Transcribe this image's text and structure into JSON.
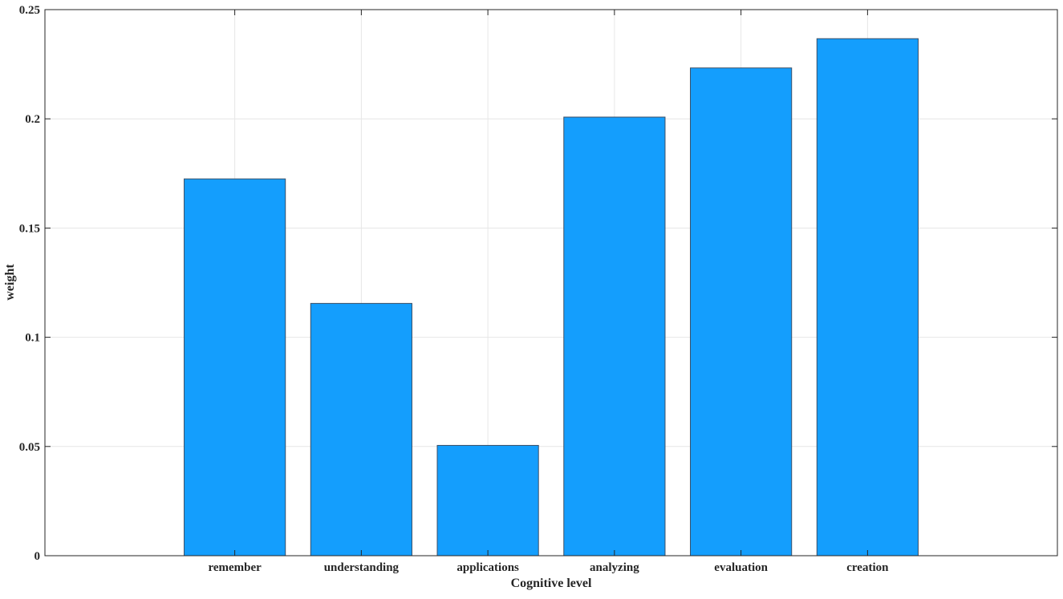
{
  "chart_data": {
    "type": "bar",
    "title": "",
    "xlabel": "Cognitive level",
    "ylabel": "weight",
    "categories": [
      "remember",
      "understanding",
      "applications",
      "analyzing",
      "evaluation",
      "creation"
    ],
    "values": [
      0.1725,
      0.1155,
      0.0505,
      0.2008,
      0.2233,
      0.2367
    ],
    "ylim": [
      0,
      0.25
    ],
    "yticks": [
      0,
      0.05,
      0.1,
      0.15,
      0.2,
      0.25
    ],
    "ytick_labels": [
      "0",
      "0.05",
      "0.1",
      "0.15",
      "0.2",
      "0.25"
    ],
    "grid": true,
    "colors": {
      "bar_fill": "#149efd",
      "bar_edge": "#3a4f66",
      "grid": "#e6e6e6",
      "axis": "#262626"
    }
  }
}
